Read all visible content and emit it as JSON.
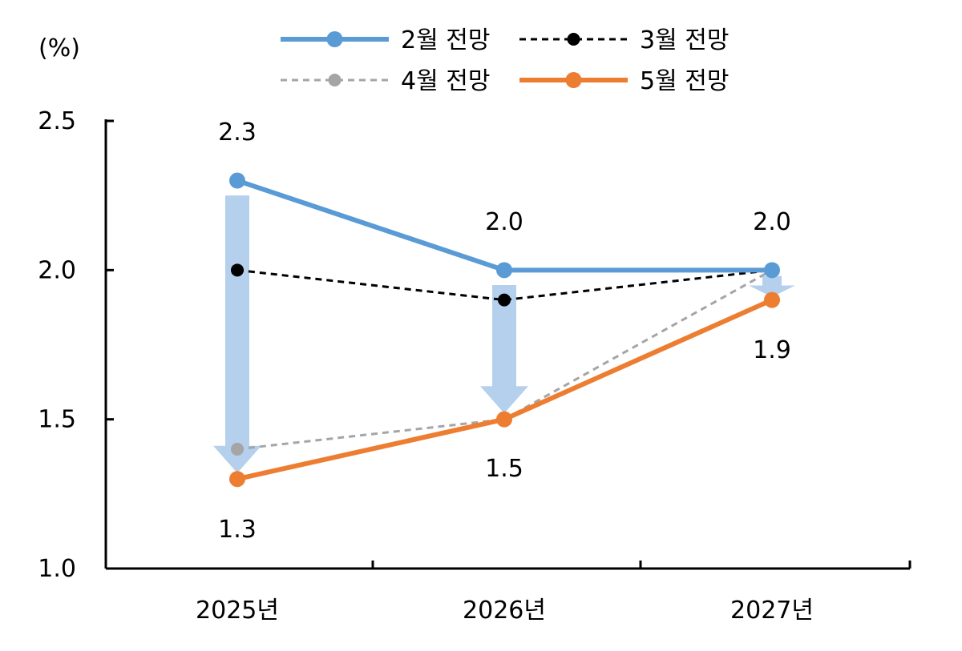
{
  "chart_data": {
    "type": "line",
    "unit": "(%)",
    "categories": [
      "2025년",
      "2026년",
      "2027년"
    ],
    "ylim": [
      1.0,
      2.5
    ],
    "yticks": [
      "1.0",
      "1.5",
      "2.0",
      "2.5"
    ],
    "grid": false,
    "legend_position": "top",
    "series": [
      {
        "name": "2월 전망",
        "values": [
          2.3,
          2.0,
          2.0
        ],
        "color": "#5b9bd5",
        "style": "solid-thick"
      },
      {
        "name": "3월 전망",
        "values": [
          2.0,
          1.9,
          2.0
        ],
        "color": "#000000",
        "style": "dashed"
      },
      {
        "name": "4월 전망",
        "values": [
          1.4,
          1.5,
          2.0
        ],
        "color": "#a5a5a5",
        "style": "dashed"
      },
      {
        "name": "5월 전망",
        "values": [
          1.3,
          1.5,
          1.9
        ],
        "color": "#ed7d31",
        "style": "solid-thick"
      }
    ],
    "data_labels": {
      "upper": [
        "2.3",
        "2.0",
        "2.0"
      ],
      "lower": [
        "1.3",
        "1.5",
        "1.9"
      ]
    },
    "arrows": [
      {
        "category": "2025년",
        "from": 2.25,
        "to": 1.32
      },
      {
        "category": "2026년",
        "from": 1.95,
        "to": 1.52
      },
      {
        "category": "2027년",
        "from": 1.98,
        "to": 1.91
      }
    ],
    "arrow_color": "#b4d0ed"
  }
}
